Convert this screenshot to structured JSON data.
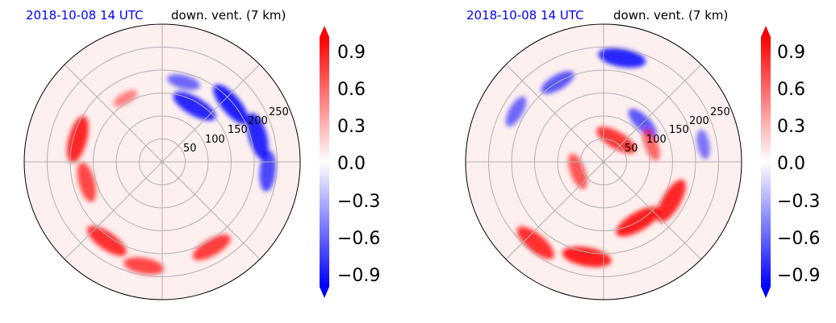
{
  "colors": {
    "negative": "#0000ff",
    "positive": "#ff0000",
    "neutral": "#ffffff",
    "grid": "#b0b0b0",
    "timestamp": "#0000ff"
  },
  "chart_data": [
    {
      "type": "heatmap",
      "projection": "polar",
      "timestamp": "2018-10-08 14 UTC",
      "title": "down. vent. (7 km)",
      "radial_ticks": [
        50,
        100,
        150,
        200,
        250
      ],
      "angular_grid_deg": [
        0,
        45,
        90,
        135,
        180,
        225,
        270,
        315
      ],
      "colorbar": {
        "ticks": [
          "0.9",
          "0.6",
          "0.3",
          "0.0",
          "−0.3",
          "−0.6",
          "−0.9"
        ],
        "range": [
          -1.0,
          1.0
        ],
        "extend": "both",
        "cmap": "bwr",
        "levels": 20
      },
      "features": [
        {
          "sign": "neg",
          "r": 140,
          "theta": 60,
          "strength": 0.9
        },
        {
          "sign": "neg",
          "r": 195,
          "theta": 40,
          "strength": 0.95
        },
        {
          "sign": "neg",
          "r": 215,
          "theta": 15,
          "strength": 0.9
        },
        {
          "sign": "neg",
          "r": 230,
          "theta": -5,
          "strength": 0.7
        },
        {
          "sign": "neg",
          "r": 180,
          "theta": 75,
          "strength": 0.5
        },
        {
          "sign": "pos",
          "r": 190,
          "theta": 165,
          "strength": 0.9
        },
        {
          "sign": "pos",
          "r": 170,
          "theta": 195,
          "strength": 0.7
        },
        {
          "sign": "pos",
          "r": 210,
          "theta": 235,
          "strength": 0.85
        },
        {
          "sign": "pos",
          "r": 230,
          "theta": 260,
          "strength": 0.7
        },
        {
          "sign": "pos",
          "r": 215,
          "theta": 300,
          "strength": 0.75
        },
        {
          "sign": "pos",
          "r": 160,
          "theta": 120,
          "strength": 0.3
        }
      ]
    },
    {
      "type": "heatmap",
      "projection": "polar",
      "timestamp": "2018-10-08 14 UTC",
      "title": "down. vent. (7 km)",
      "radial_ticks": [
        50,
        100,
        150,
        200,
        250
      ],
      "angular_grid_deg": [
        0,
        45,
        90,
        135,
        180,
        225,
        270,
        315
      ],
      "colorbar": {
        "ticks": [
          "0.9",
          "0.6",
          "0.3",
          "0.0",
          "−0.3",
          "−0.6",
          "−0.9"
        ],
        "range": [
          -1.0,
          1.0
        ],
        "extend": "both",
        "cmap": "bwr",
        "levels": 20
      },
      "features": [
        {
          "sign": "neg",
          "r": 230,
          "theta": 80,
          "strength": 0.9
        },
        {
          "sign": "neg",
          "r": 200,
          "theta": 120,
          "strength": 0.6
        },
        {
          "sign": "neg",
          "r": 220,
          "theta": 150,
          "strength": 0.5
        },
        {
          "sign": "neg",
          "r": 120,
          "theta": 45,
          "strength": 0.6
        },
        {
          "sign": "neg",
          "r": 220,
          "theta": 10,
          "strength": 0.4
        },
        {
          "sign": "pos",
          "r": 55,
          "theta": 60,
          "strength": 0.8
        },
        {
          "sign": "pos",
          "r": 60,
          "theta": 200,
          "strength": 0.6
        },
        {
          "sign": "pos",
          "r": 150,
          "theta": 300,
          "strength": 0.95
        },
        {
          "sign": "pos",
          "r": 210,
          "theta": 260,
          "strength": 0.95
        },
        {
          "sign": "pos",
          "r": 230,
          "theta": 230,
          "strength": 0.85
        },
        {
          "sign": "pos",
          "r": 170,
          "theta": 330,
          "strength": 0.9
        },
        {
          "sign": "pos",
          "r": 110,
          "theta": 20,
          "strength": 0.5
        }
      ]
    }
  ]
}
